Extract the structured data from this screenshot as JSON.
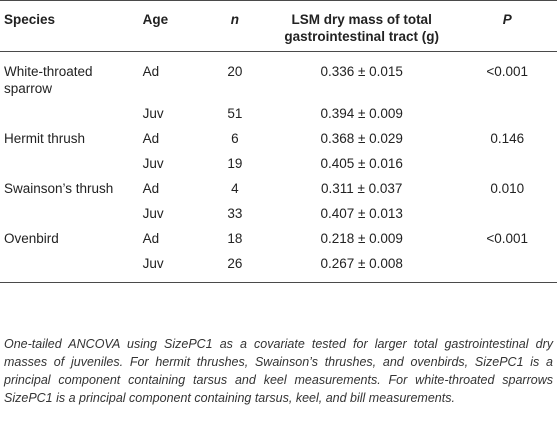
{
  "table": {
    "headers": {
      "species": "Species",
      "age": "Age",
      "n": "n",
      "lsm": "LSM dry mass of total gastrointestinal tract (g)",
      "p": "P"
    },
    "rows": [
      {
        "species": "White-throated sparrow",
        "age": "Ad",
        "n": "20",
        "lsm": "0.336 ± 0.015",
        "p": "<0.001"
      },
      {
        "species": "",
        "age": "Juv",
        "n": "51",
        "lsm": "0.394 ± 0.009",
        "p": ""
      },
      {
        "species": "Hermit thrush",
        "age": "Ad",
        "n": "6",
        "lsm": "0.368 ± 0.029",
        "p": "0.146"
      },
      {
        "species": "",
        "age": "Juv",
        "n": "19",
        "lsm": "0.405 ± 0.016",
        "p": ""
      },
      {
        "species": "Swainson’s thrush",
        "age": "Ad",
        "n": "4",
        "lsm": "0.311 ± 0.037",
        "p": "0.010"
      },
      {
        "species": "",
        "age": "Juv",
        "n": "33",
        "lsm": "0.407 ± 0.013",
        "p": ""
      },
      {
        "species": "Ovenbird",
        "age": "Ad",
        "n": "18",
        "lsm": "0.218 ± 0.009",
        "p": "<0.001"
      },
      {
        "species": "",
        "age": "Juv",
        "n": "26",
        "lsm": "0.267 ± 0.008",
        "p": ""
      }
    ]
  },
  "footnote": "One-tailed ANCOVA using SizePC1 as a covariate tested for larger total gastrointestinal dry masses of juveniles. For hermit thrushes, Swainson’s thrushes, and ovenbirds, SizePC1 is a principal component containing tarsus and keel measurements. For white-throated sparrows SizePC1 is a principal component containing tarsus, keel, and bill measurements."
}
